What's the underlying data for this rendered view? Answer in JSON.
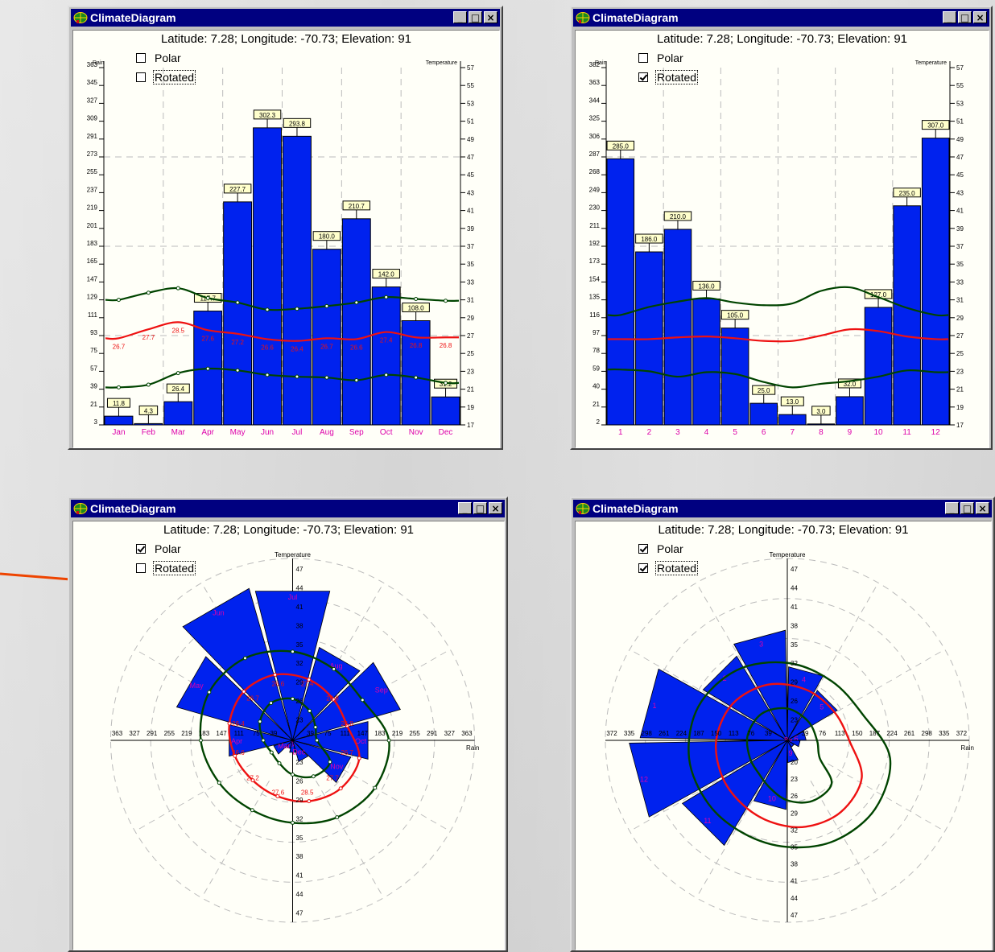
{
  "app": {
    "title": "ClimateDiagram",
    "header": "Latitude: 7.28; Longitude: -70.73; Elevation: 91"
  },
  "controls": {
    "polar_label": "Polar",
    "rotated_label": "Rotated"
  },
  "window_buttons": {
    "minimize": "_",
    "maximize": "□",
    "close": "×"
  },
  "colors": {
    "bars": "#0022ee",
    "temp_mean": "#ee1111",
    "temp_band": "#004400",
    "month_label": "#dd00aa",
    "titlebar": "#000080"
  },
  "windows": [
    {
      "polar": false,
      "rotated": false
    },
    {
      "polar": false,
      "rotated": true
    },
    {
      "polar": true,
      "rotated": false
    },
    {
      "polar": true,
      "rotated": true
    }
  ],
  "chart_data": [
    {
      "type": "bar",
      "categories": [
        "Jan",
        "Feb",
        "Mar",
        "Apr",
        "May",
        "Jun",
        "Jul",
        "Aug",
        "Sep",
        "Oct",
        "Nov",
        "Dec"
      ],
      "values": [
        11.8,
        4.3,
        26.4,
        117.7,
        227.7,
        302.3,
        293.8,
        180.0,
        210.7,
        142.0,
        108.0,
        31.2
      ],
      "value_labels": [
        "11.8",
        "4.3",
        "26.4",
        "117.7",
        "227.7",
        "302.3",
        "293.8",
        "180.0",
        "210.7",
        "142.0",
        "108.0",
        "31.2"
      ],
      "rain_axis_label": "Rain",
      "temp_axis_label": "Temperature",
      "rain_ticks": [
        "3",
        "21",
        "39",
        "57",
        "75",
        "93",
        "111",
        "129",
        "147",
        "165",
        "183",
        "201",
        "219",
        "237",
        "255",
        "273",
        "291",
        "309",
        "327",
        "345",
        "363"
      ],
      "temp_ticks": [
        "17",
        "19",
        "21",
        "23",
        "25",
        "27",
        "29",
        "31",
        "33",
        "35",
        "37",
        "39",
        "41",
        "43",
        "45",
        "47",
        "49",
        "51",
        "53",
        "55",
        "57"
      ],
      "ylim_rain": [
        3,
        363
      ],
      "ylim_temp": [
        17,
        57
      ],
      "temp_mean": [
        26.7,
        27.7,
        28.5,
        27.6,
        27.2,
        26.6,
        26.4,
        26.7,
        26.6,
        27.4,
        26.8,
        26.8
      ],
      "temp_mean_labels": [
        "26.7",
        "27.7",
        "28.5",
        "27.6",
        "27.2",
        "26.6",
        "26.4",
        "26.7",
        "26.6",
        "27.4",
        "26.8",
        "26.8"
      ],
      "temp_upper": [
        31.0,
        31.8,
        32.3,
        31.2,
        30.7,
        29.9,
        30.0,
        30.3,
        30.7,
        31.3,
        31.1,
        30.9
      ],
      "temp_lower": [
        21.2,
        21.5,
        22.8,
        23.3,
        23.1,
        22.6,
        22.4,
        22.3,
        22.0,
        22.6,
        22.3,
        21.7
      ]
    },
    {
      "type": "bar",
      "categories": [
        "1",
        "2",
        "3",
        "4",
        "5",
        "6",
        "7",
        "8",
        "9",
        "10",
        "11",
        "12"
      ],
      "values": [
        285.0,
        186.0,
        210.0,
        136.0,
        105.0,
        25.0,
        13.0,
        3.0,
        32.0,
        127.0,
        235.0,
        307.0
      ],
      "value_labels": [
        "285.0",
        "186.0",
        "210.0",
        "136.0",
        "105.0",
        "25.0",
        "13.0",
        "3.0",
        "32.0",
        "127.0",
        "235.0",
        "307.0"
      ],
      "rain_axis_label": "Rain",
      "temp_axis_label": "Temperature",
      "rain_ticks": [
        "2",
        "21",
        "40",
        "59",
        "78",
        "97",
        "116",
        "135",
        "154",
        "173",
        "192",
        "211",
        "230",
        "249",
        "268",
        "287",
        "306",
        "325",
        "344",
        "363",
        "382"
      ],
      "temp_ticks": [
        "17",
        "19",
        "21",
        "23",
        "25",
        "27",
        "29",
        "31",
        "33",
        "35",
        "37",
        "39",
        "41",
        "43",
        "45",
        "47",
        "49",
        "51",
        "53",
        "55",
        "57"
      ],
      "ylim_rain": [
        2,
        382
      ],
      "ylim_temp": [
        17,
        57
      ],
      "temp_mean": [
        26.6,
        26.6,
        26.8,
        26.9,
        26.7,
        26.4,
        26.4,
        27.0,
        27.7,
        27.5,
        26.9,
        26.6
      ],
      "temp_upper": [
        29.3,
        30.2,
        30.8,
        31.2,
        30.7,
        30.4,
        30.6,
        32.0,
        32.4,
        31.3,
        30.1,
        29.3
      ],
      "temp_lower": [
        23.2,
        23.0,
        22.4,
        22.9,
        22.7,
        21.8,
        21.2,
        21.6,
        21.9,
        22.4,
        23.1,
        22.9
      ]
    },
    {
      "type": "polar-bar",
      "categories": [
        "Jan",
        "Feb",
        "Mar",
        "Apr",
        "May",
        "Jun",
        "Jul",
        "Aug",
        "Sep",
        "Oct",
        "Nov",
        "Dec"
      ],
      "values": [
        11.8,
        4.3,
        26.4,
        117.7,
        227.7,
        302.3,
        293.8,
        180.0,
        210.7,
        142.0,
        108.0,
        31.2
      ],
      "rain_axis_label": "Rain",
      "temp_axis_label": "Temperature",
      "rain_ticks_left": [
        "363",
        "327",
        "291",
        "255",
        "219",
        "183",
        "147",
        "111",
        "75",
        "39"
      ],
      "rain_ticks_right": [
        "39",
        "75",
        "111",
        "147",
        "183",
        "219",
        "255",
        "291",
        "327",
        "363"
      ],
      "temp_ticks_up": [
        "47",
        "44",
        "41",
        "38",
        "35",
        "32",
        "29",
        "26",
        "23"
      ],
      "temp_ticks_down": [
        "23",
        "26",
        "29",
        "32",
        "35",
        "38",
        "41",
        "44",
        "47"
      ],
      "temp_mean_labels": [
        "26.7",
        "27.7",
        "28.5",
        "27.6",
        "27.2",
        "26.6",
        "26.4",
        "26.7",
        "26.6",
        "27.4",
        "26.8",
        "26.8"
      ]
    },
    {
      "type": "polar-bar",
      "categories": [
        "1",
        "2",
        "3",
        "4",
        "5",
        "6",
        "7",
        "8",
        "9",
        "10",
        "11",
        "12"
      ],
      "values": [
        285.0,
        186.0,
        210.0,
        136.0,
        105.0,
        25.0,
        13.0,
        3.0,
        32.0,
        127.0,
        235.0,
        307.0
      ],
      "rain_axis_label": "Rain",
      "temp_axis_label": "Temperature",
      "rain_ticks_left": [
        "372",
        "335",
        "298",
        "261",
        "224",
        "187",
        "150",
        "113",
        "76",
        "39"
      ],
      "rain_ticks_right": [
        "39",
        "76",
        "113",
        "150",
        "187",
        "224",
        "261",
        "298",
        "335",
        "372"
      ],
      "temp_ticks_up": [
        "47",
        "44",
        "41",
        "38",
        "35",
        "32",
        "29",
        "26",
        "23"
      ],
      "temp_ticks_down": [
        "20",
        "23",
        "26",
        "29",
        "32",
        "35",
        "38",
        "41",
        "44",
        "47"
      ]
    }
  ]
}
